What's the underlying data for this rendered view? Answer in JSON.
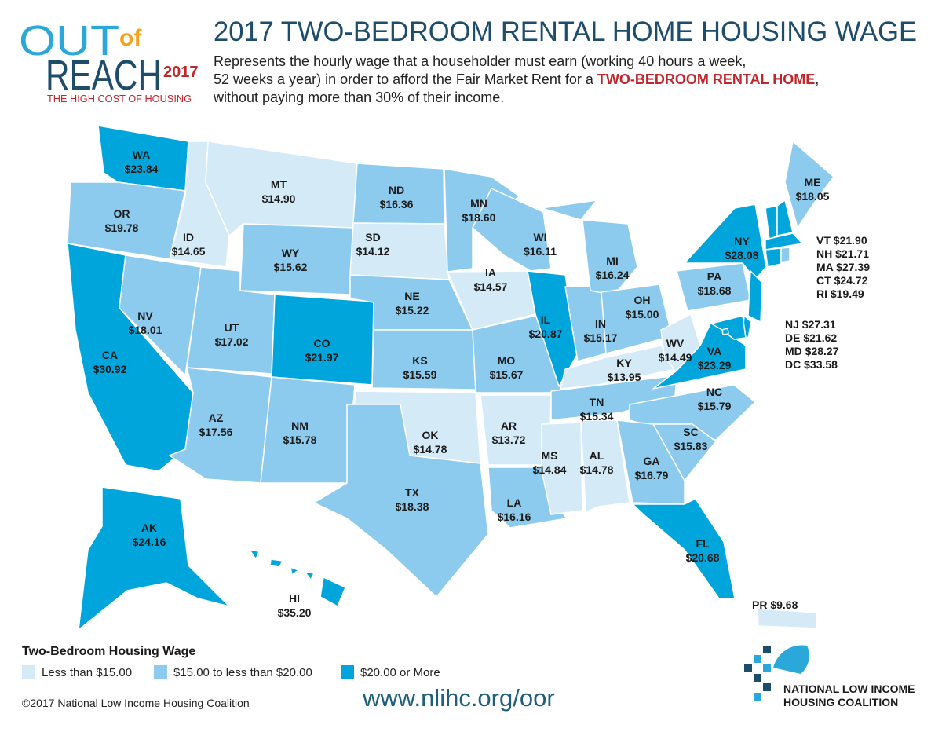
{
  "header": {
    "logo": {
      "out": "OUT",
      "of": "of",
      "reach": "REACH",
      "year": "2017",
      "tagline": "THE HIGH COST OF HOUSING"
    },
    "title": "2017 TWO-BEDROOM RENTAL HOME HOUSING WAGE",
    "subtitle": {
      "line1": "Represents the hourly wage that a householder must earn (working 40 hours a week,",
      "line2": "52 weeks a year) in order to afford the Fair Market Rent for a ",
      "highlight": "TWO-BEDROOM RENTAL HOME",
      "line2_end": ",",
      "line3": "without paying more than 30% of their income."
    }
  },
  "states": [
    {
      "abbr": "WA",
      "wage": "$23.84",
      "color": "#00a5dc"
    },
    {
      "abbr": "OR",
      "wage": "$19.78",
      "color": "#8ccbed"
    },
    {
      "abbr": "CA",
      "wage": "$30.92",
      "color": "#00a5dc"
    },
    {
      "abbr": "NV",
      "wage": "$18.01",
      "color": "#8ccbed"
    },
    {
      "abbr": "ID",
      "wage": "$14.65",
      "color": "#d4ebf7"
    },
    {
      "abbr": "MT",
      "wage": "$14.90",
      "color": "#d4ebf7"
    },
    {
      "abbr": "WY",
      "wage": "$15.62",
      "color": "#8ccbed"
    },
    {
      "abbr": "UT",
      "wage": "$17.02",
      "color": "#8ccbed"
    },
    {
      "abbr": "CO",
      "wage": "$21.97",
      "color": "#00a5dc"
    },
    {
      "abbr": "AZ",
      "wage": "$17.56",
      "color": "#8ccbed"
    },
    {
      "abbr": "NM",
      "wage": "$15.78",
      "color": "#8ccbed"
    },
    {
      "abbr": "ND",
      "wage": "$16.36",
      "color": "#8ccbed"
    },
    {
      "abbr": "SD",
      "wage": "$14.12",
      "color": "#d4ebf7"
    },
    {
      "abbr": "NE",
      "wage": "$15.22",
      "color": "#8ccbed"
    },
    {
      "abbr": "KS",
      "wage": "$15.59",
      "color": "#8ccbed"
    },
    {
      "abbr": "OK",
      "wage": "$14.78",
      "color": "#d4ebf7"
    },
    {
      "abbr": "TX",
      "wage": "$18.38",
      "color": "#8ccbed"
    },
    {
      "abbr": "MN",
      "wage": "$18.60",
      "color": "#8ccbed"
    },
    {
      "abbr": "IA",
      "wage": "$14.57",
      "color": "#d4ebf7"
    },
    {
      "abbr": "MO",
      "wage": "$15.67",
      "color": "#8ccbed"
    },
    {
      "abbr": "AR",
      "wage": "$13.72",
      "color": "#d4ebf7"
    },
    {
      "abbr": "LA",
      "wage": "$16.16",
      "color": "#8ccbed"
    },
    {
      "abbr": "MS",
      "wage": "$14.84",
      "color": "#d4ebf7"
    },
    {
      "abbr": "AL",
      "wage": "$14.78",
      "color": "#d4ebf7"
    },
    {
      "abbr": "WI",
      "wage": "$16.11",
      "color": "#8ccbed"
    },
    {
      "abbr": "IL",
      "wage": "$20.87",
      "color": "#00a5dc"
    },
    {
      "abbr": "IN",
      "wage": "$15.17",
      "color": "#8ccbed"
    },
    {
      "abbr": "MI",
      "wage": "$16.24",
      "color": "#8ccbed"
    },
    {
      "abbr": "OH",
      "wage": "$15.00",
      "color": "#8ccbed"
    },
    {
      "abbr": "KY",
      "wage": "$13.95",
      "color": "#d4ebf7"
    },
    {
      "abbr": "TN",
      "wage": "$15.34",
      "color": "#8ccbed"
    },
    {
      "abbr": "WV",
      "wage": "$14.49",
      "color": "#d4ebf7"
    },
    {
      "abbr": "VA",
      "wage": "$23.29",
      "color": "#00a5dc"
    },
    {
      "abbr": "NC",
      "wage": "$15.79",
      "color": "#8ccbed"
    },
    {
      "abbr": "SC",
      "wage": "$15.83",
      "color": "#8ccbed"
    },
    {
      "abbr": "GA",
      "wage": "$16.79",
      "color": "#8ccbed"
    },
    {
      "abbr": "FL",
      "wage": "$20.68",
      "color": "#00a5dc"
    },
    {
      "abbr": "PA",
      "wage": "$18.68",
      "color": "#8ccbed"
    },
    {
      "abbr": "NY",
      "wage": "$28.08",
      "color": "#00a5dc"
    },
    {
      "abbr": "ME",
      "wage": "$18.05",
      "color": "#8ccbed"
    },
    {
      "abbr": "VT",
      "wage": "$21.90",
      "color": "#00a5dc"
    },
    {
      "abbr": "NH",
      "wage": "$21.71",
      "color": "#00a5dc"
    },
    {
      "abbr": "MA",
      "wage": "$27.39",
      "color": "#00a5dc"
    },
    {
      "abbr": "CT",
      "wage": "$24.72",
      "color": "#00a5dc"
    },
    {
      "abbr": "RI",
      "wage": "$19.49",
      "color": "#8ccbed"
    },
    {
      "abbr": "NJ",
      "wage": "$27.31",
      "color": "#00a5dc"
    },
    {
      "abbr": "DE",
      "wage": "$21.62",
      "color": "#00a5dc"
    },
    {
      "abbr": "MD",
      "wage": "$28.27",
      "color": "#00a5dc"
    },
    {
      "abbr": "DC",
      "wage": "$33.58",
      "color": "#00a5dc"
    },
    {
      "abbr": "AK",
      "wage": "$24.16",
      "color": "#00a5dc"
    },
    {
      "abbr": "HI",
      "wage": "$35.20",
      "color": "#00a5dc"
    },
    {
      "abbr": "PR",
      "wage": "$9.68",
      "color": "#d4ebf7"
    }
  ],
  "legend": {
    "title": "Two-Bedroom Housing Wage",
    "items": [
      {
        "label": "Less than $15.00",
        "color": "#d4ebf7"
      },
      {
        "label": "$15.00 to less than $20.00",
        "color": "#8ccbed"
      },
      {
        "label": "$20.00 or More",
        "color": "#00a5dc"
      }
    ]
  },
  "footer": {
    "copyright": "©2017 National Low Income Housing Coalition",
    "url": "www.nlihc.org/oor",
    "org": [
      "NATIONAL LOW INCOME",
      "HOUSING COALITION"
    ]
  }
}
